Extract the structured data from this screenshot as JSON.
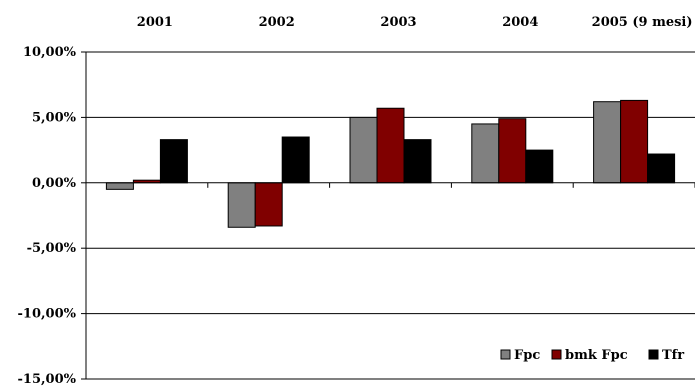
{
  "chart_data": {
    "type": "bar",
    "categories": [
      "2001",
      "2002",
      "2003",
      "2004",
      "2005 (9 mesi)"
    ],
    "series": [
      {
        "name": "Fpc",
        "color": "#808080",
        "values": [
          -0.5,
          -3.4,
          5.0,
          4.5,
          6.2
        ]
      },
      {
        "name": "bmk Fpc",
        "color": "#800000",
        "values": [
          0.2,
          -3.3,
          5.7,
          4.9,
          6.3
        ]
      },
      {
        "name": "Tfr",
        "color": "#000000",
        "values": [
          3.3,
          3.5,
          3.3,
          2.5,
          2.2
        ]
      }
    ],
    "yticks": [
      10,
      5,
      0,
      -5,
      -10,
      -15
    ],
    "ytick_labels": [
      "10,00%",
      "5,00%",
      "0,00%",
      "-5,00%",
      "-10,00%",
      "-15,00%"
    ],
    "ylim": [
      -15,
      10
    ],
    "grid": true,
    "legend_position": "bottom-right",
    "category_labels_position": "top",
    "title": "",
    "xlabel": "",
    "ylabel": ""
  }
}
